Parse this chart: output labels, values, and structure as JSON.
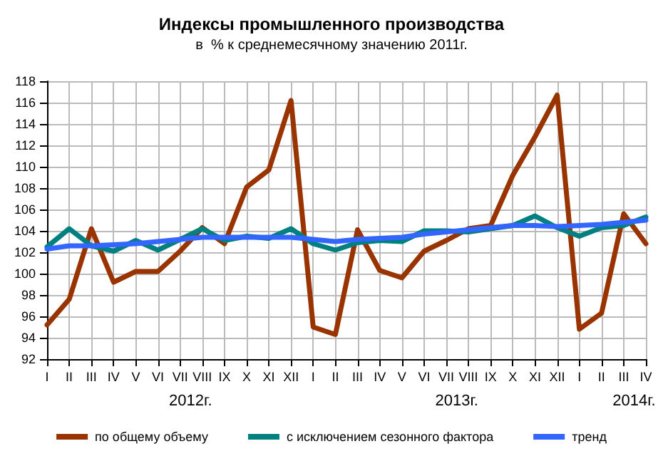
{
  "chart_data": {
    "type": "line",
    "title": "Индексы промышленного производства",
    "subtitle": "в  % к среднемесячному значению 2011г.",
    "categories": [
      "I",
      "II",
      "III",
      "IV",
      "V",
      "VI",
      "VII",
      "VIII",
      "IX",
      "X",
      "XI",
      "XII",
      "I",
      "II",
      "III",
      "IV",
      "V",
      "VI",
      "VII",
      "VIII",
      "IX",
      "X",
      "XI",
      "XII",
      "I",
      "II",
      "III",
      "IV"
    ],
    "annotations": [
      "2012г.",
      "2013г.",
      "2014г."
    ],
    "series": [
      {
        "name": "по общему объему",
        "color": "#993300",
        "values": [
          95.2,
          97.6,
          104.2,
          99.2,
          100.2,
          100.2,
          102.1,
          104.3,
          102.8,
          108.1,
          109.7,
          116.2,
          95.0,
          94.3,
          104.1,
          100.3,
          99.6,
          102.1,
          103.1,
          104.2,
          104.5,
          109.2,
          112.8,
          116.7,
          94.8,
          96.3,
          105.6,
          102.8
        ]
      },
      {
        "name": "с исключением сезонного фактора",
        "color": "#008080",
        "values": [
          102.5,
          104.2,
          102.6,
          102.1,
          103.1,
          102.2,
          103.2,
          104.2,
          103.1,
          103.5,
          103.3,
          104.2,
          102.8,
          102.2,
          102.9,
          103.1,
          103.0,
          104.0,
          104.0,
          103.9,
          104.2,
          104.5,
          105.4,
          104.3,
          103.5,
          104.3,
          104.5,
          105.3
        ]
      },
      {
        "name": "тренд",
        "color": "#3366ff",
        "values": [
          102.3,
          102.6,
          102.6,
          102.7,
          102.8,
          103.0,
          103.2,
          103.4,
          103.4,
          103.4,
          103.4,
          103.4,
          103.2,
          103.0,
          103.2,
          103.3,
          103.4,
          103.7,
          103.9,
          104.1,
          104.3,
          104.5,
          104.5,
          104.4,
          104.5,
          104.6,
          104.8,
          105.0
        ]
      }
    ],
    "ylim": [
      92,
      118
    ],
    "yticks": [
      92,
      94,
      96,
      98,
      100,
      102,
      104,
      106,
      108,
      110,
      112,
      114,
      116,
      118
    ],
    "grid": true,
    "legend": "bottom",
    "marker": "none",
    "line_style": "solid"
  }
}
